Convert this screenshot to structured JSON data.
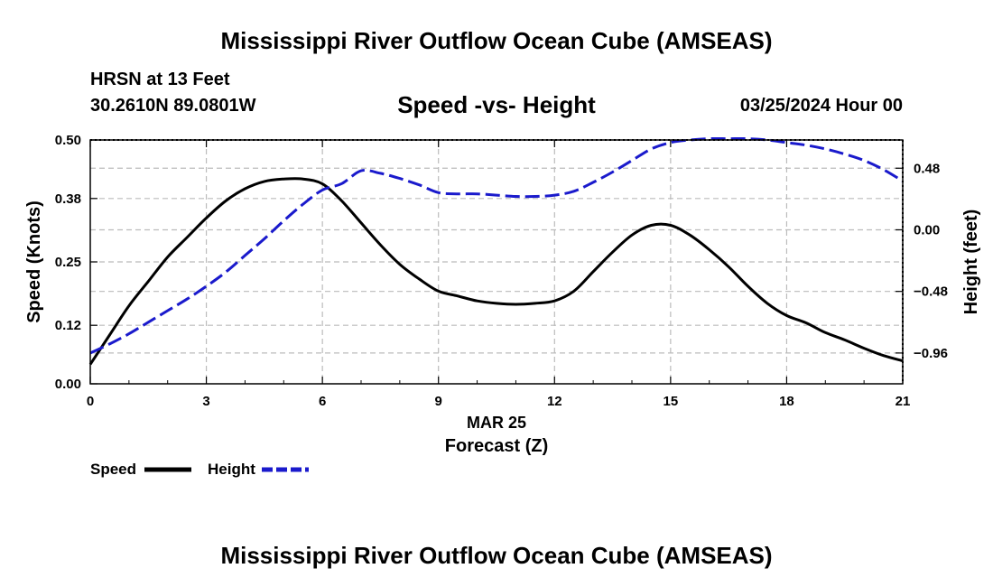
{
  "title_top": "Mississippi River Outflow Ocean Cube (AMSEAS)",
  "title_bottom": "Mississippi River Outflow Ocean Cube (AMSEAS)",
  "station": "HRSN at 13 Feet",
  "coords": "30.2610N  89.0801W",
  "date": "03/25/2024 Hour 00",
  "colors": {
    "speed": "#000000",
    "height": "#1a1acc",
    "grid": "#bbbbbb"
  },
  "chart_data": {
    "type": "line",
    "title": "Speed -vs- Height",
    "xlabel": "Forecast (Z)",
    "date_label": "MAR 25",
    "ylabel": "Speed (Knots)",
    "y2label": "Height (feet)",
    "xlim": [
      0,
      21
    ],
    "ylim": [
      0,
      0.5
    ],
    "y2lim": [
      -1.2,
      0.7
    ],
    "x_ticks": [
      "0",
      "3",
      "6",
      "9",
      "12",
      "15",
      "18",
      "21"
    ],
    "y_ticks": [
      "0.00",
      "0.12",
      "0.25",
      "0.38",
      "0.50"
    ],
    "y2_ticks": [
      "-0.96",
      "-0.48",
      "0.00",
      "0.48"
    ],
    "series": [
      {
        "name": "Speed",
        "axis": "left",
        "style": "solid",
        "x": [
          0,
          0.5,
          1,
          1.5,
          2,
          2.5,
          3,
          3.5,
          4,
          4.5,
          5,
          5.5,
          6,
          6.5,
          7,
          7.5,
          8,
          8.5,
          9,
          9.5,
          10,
          10.5,
          11,
          11.5,
          12,
          12.5,
          13,
          13.5,
          14,
          14.5,
          15,
          15.5,
          16,
          16.5,
          17,
          17.5,
          18,
          18.5,
          19,
          19.5,
          20,
          20.5,
          21
        ],
        "values": [
          0.04,
          0.1,
          0.16,
          0.21,
          0.26,
          0.3,
          0.34,
          0.375,
          0.4,
          0.415,
          0.42,
          0.42,
          0.41,
          0.375,
          0.33,
          0.285,
          0.245,
          0.215,
          0.19,
          0.18,
          0.17,
          0.165,
          0.163,
          0.165,
          0.17,
          0.19,
          0.23,
          0.27,
          0.305,
          0.325,
          0.325,
          0.305,
          0.275,
          0.24,
          0.2,
          0.165,
          0.14,
          0.125,
          0.105,
          0.09,
          0.073,
          0.058,
          0.047
        ]
      },
      {
        "name": "Height",
        "axis": "right",
        "style": "dashed",
        "x": [
          0,
          0.5,
          1,
          1.5,
          2,
          2.5,
          3,
          3.5,
          4,
          4.5,
          5,
          5.5,
          6,
          6.5,
          7,
          7.5,
          8,
          8.5,
          9,
          9.5,
          10,
          10.5,
          11,
          11.5,
          12,
          12.5,
          13,
          13.5,
          14,
          14.5,
          15,
          15.5,
          16,
          16.5,
          17,
          17.5,
          18,
          18.5,
          19,
          19.5,
          20,
          20.5,
          21
        ],
        "values": [
          -0.96,
          -0.89,
          -0.81,
          -0.72,
          -0.63,
          -0.54,
          -0.44,
          -0.33,
          -0.2,
          -0.07,
          0.07,
          0.2,
          0.31,
          0.36,
          0.46,
          0.44,
          0.4,
          0.35,
          0.29,
          0.28,
          0.28,
          0.27,
          0.26,
          0.26,
          0.27,
          0.3,
          0.37,
          0.45,
          0.54,
          0.63,
          0.68,
          0.7,
          0.71,
          0.71,
          0.71,
          0.7,
          0.68,
          0.66,
          0.63,
          0.59,
          0.54,
          0.47,
          0.38
        ]
      }
    ]
  }
}
